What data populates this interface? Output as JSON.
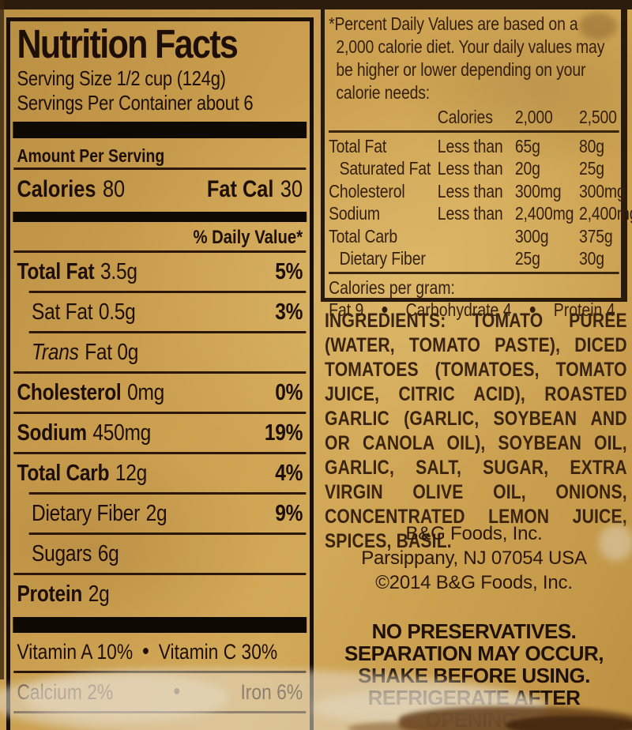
{
  "colors": {
    "label_background": "#c89f4f",
    "ink_black": "#1d0f06",
    "ink_brown": "#3a2410",
    "worn_patch": "#e4dbc8",
    "stain_brown": "#6a451f"
  },
  "nutrition": {
    "title": "Nutrition Facts",
    "serving_size": "Serving Size 1/2 cup (124g)",
    "servings_per_container": "Servings Per Container about 6",
    "amount_per_serving": "Amount Per Serving",
    "calories_label": "Calories",
    "calories_value": "80",
    "fat_cal_label": "Fat Cal",
    "fat_cal_value": "30",
    "daily_value_header": "% Daily Value*",
    "bullet": "•",
    "rows": [
      {
        "label": "Total Fat",
        "amount": "3.5g",
        "dv": "5%"
      },
      {
        "label": "Sat Fat",
        "amount": "0.5g",
        "dv": "3%"
      },
      {
        "label": "Trans",
        "amount": "Fat 0g",
        "dv": ""
      },
      {
        "label": "Cholesterol",
        "amount": "0mg",
        "dv": "0%"
      },
      {
        "label": "Sodium",
        "amount": "450mg",
        "dv": "19%"
      },
      {
        "label": "Total Carb",
        "amount": "12g",
        "dv": "4%"
      },
      {
        "label": "Dietary Fiber",
        "amount": "2g",
        "dv": "9%"
      },
      {
        "label": "Sugars",
        "amount": "6g",
        "dv": ""
      },
      {
        "label": "Protein",
        "amount": "2g",
        "dv": ""
      }
    ],
    "vitamins": [
      {
        "left": "Vitamin A 10%",
        "right": "Vitamin C 30%"
      },
      {
        "left": "Calcium 2%",
        "right": "Iron 6%"
      }
    ]
  },
  "footnote": {
    "note": "*Percent Daily Values are based on a 2,000 calorie diet. Your daily values may be higher or lower depending on your calorie needs:",
    "header": {
      "calories": "Calories",
      "v2000": "2,000",
      "v2500": "2,500"
    },
    "rows": [
      {
        "label": "Total Fat",
        "qualifier": "Less than",
        "v2000": "65g",
        "v2500": "80g"
      },
      {
        "label": "Saturated Fat",
        "qualifier": "Less than",
        "v2000": "20g",
        "v2500": "25g"
      },
      {
        "label": "Cholesterol",
        "qualifier": "Less than",
        "v2000": "300mg",
        "v2500": "300mg"
      },
      {
        "label": "Sodium",
        "qualifier": "Less than",
        "v2000": "2,400mg",
        "v2500": "2,400mg"
      },
      {
        "label": "Total Carb",
        "qualifier": "",
        "v2000": "300g",
        "v2500": "375g"
      },
      {
        "label": "Dietary Fiber",
        "qualifier": "",
        "v2000": "25g",
        "v2500": "30g"
      }
    ],
    "calories_per_gram": {
      "title": "Calories per gram:",
      "fat": "Fat 9",
      "carbohydrate": "Carbohydrate 4",
      "protein": "Protein 4",
      "bullet": "•"
    }
  },
  "ingredients": {
    "text": "INGREDIENTS: TOMATO PUREE (WATER, TOMATO PASTE), DICED TOMATOES (TOMATOES, TOMATO JUICE, CITRIC ACID), ROASTED GARLIC (GARLIC, SOYBEAN AND OR CANOLA OIL), SOYBEAN OIL, GARLIC, SALT, SUGAR, EXTRA VIRGIN OLIVE OIL, ONIONS, CONCENTRATED LEMON JUICE, SPICES, BASIL."
  },
  "company": {
    "name": "B&G Foods, Inc.",
    "address": "Parsippany, NJ 07054  USA",
    "copyright": "©2014 B&G Foods, Inc."
  },
  "warnings": [
    "NO PRESERVATIVES.",
    "SEPARATION MAY OCCUR,",
    "SHAKE BEFORE USING.",
    "REFRIGERATE AFTER OPENING."
  ]
}
